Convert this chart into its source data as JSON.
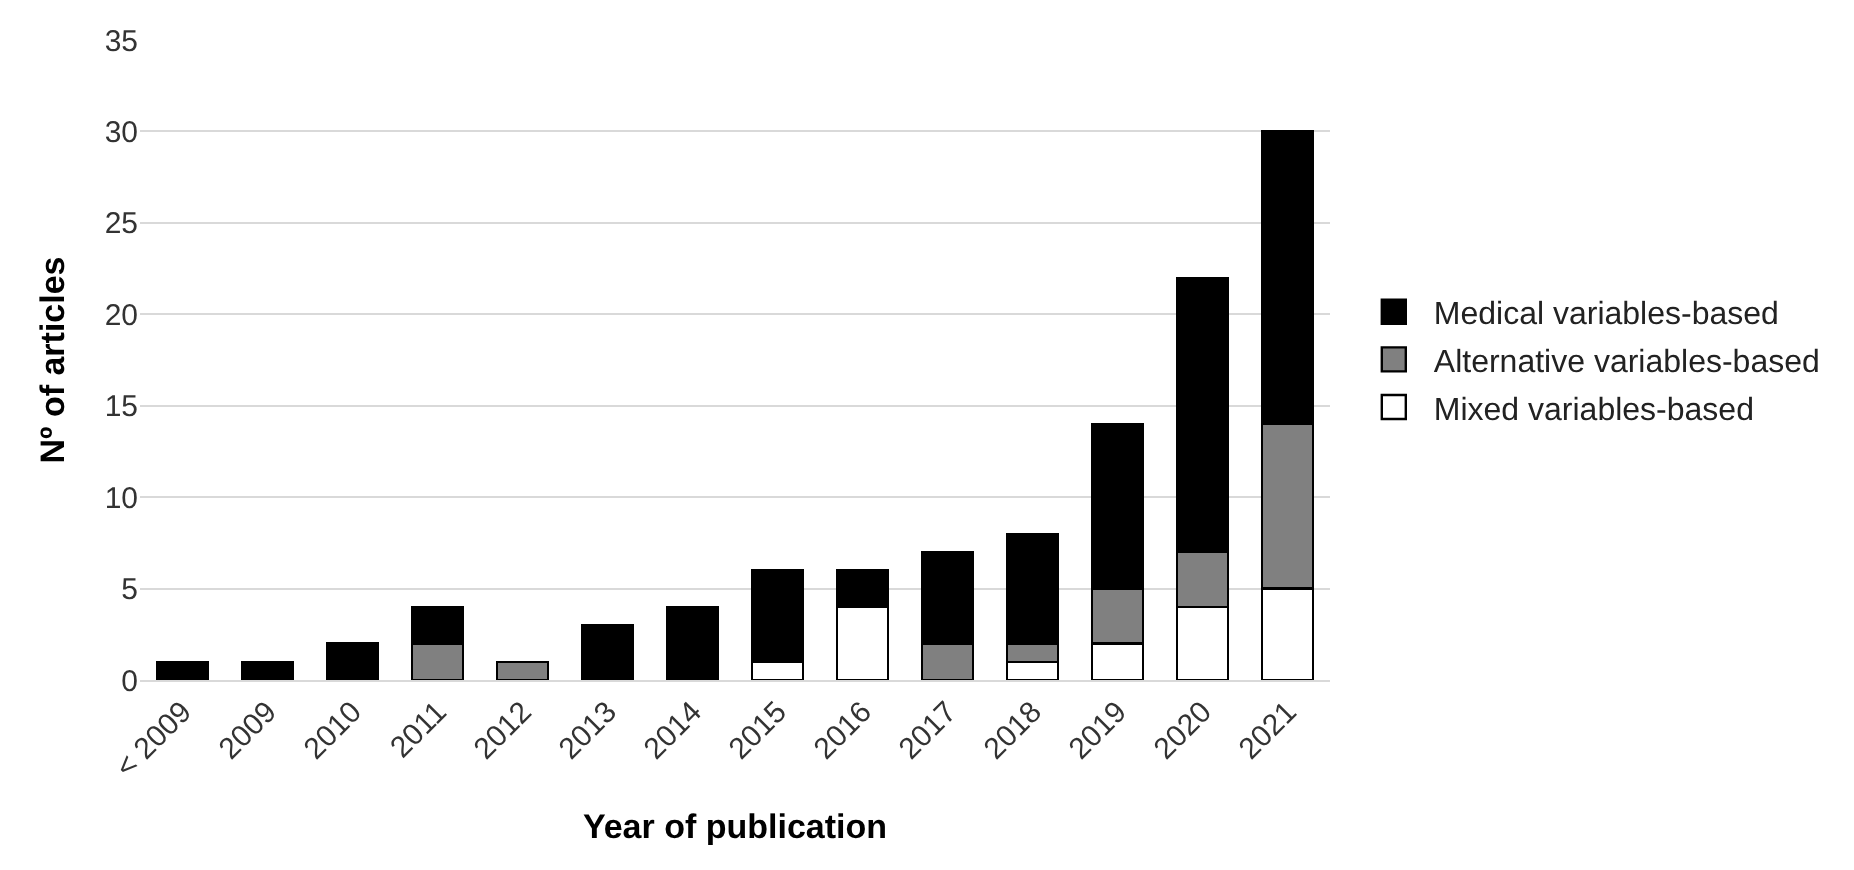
{
  "chart_data": {
    "type": "bar",
    "stacked": true,
    "xlabel": "Year of publication",
    "ylabel": "Nº of articles",
    "categories": [
      "< 2009",
      "2009",
      "2010",
      "2011",
      "2012",
      "2013",
      "2014",
      "2015",
      "2016",
      "2017",
      "2018",
      "2019",
      "2020",
      "2021"
    ],
    "series": [
      {
        "name": "Mixed variables-based",
        "color": "#ffffff",
        "values": [
          0,
          0,
          0,
          0,
          0,
          0,
          0,
          1,
          4,
          0,
          1,
          2,
          4,
          5
        ]
      },
      {
        "name": "Alternative variables-based",
        "color": "#808080",
        "values": [
          0,
          0,
          0,
          2,
          1,
          0,
          0,
          0,
          0,
          2,
          1,
          3,
          3,
          9
        ]
      },
      {
        "name": "Medical variables-based",
        "color": "#000000",
        "values": [
          1,
          1,
          2,
          2,
          0,
          3,
          4,
          5,
          2,
          5,
          6,
          9,
          15,
          16
        ]
      }
    ],
    "ylim": [
      0,
      35
    ],
    "yticks": [
      0,
      5,
      10,
      15,
      20,
      25,
      30,
      35
    ],
    "grid": "y",
    "legend": "right"
  }
}
